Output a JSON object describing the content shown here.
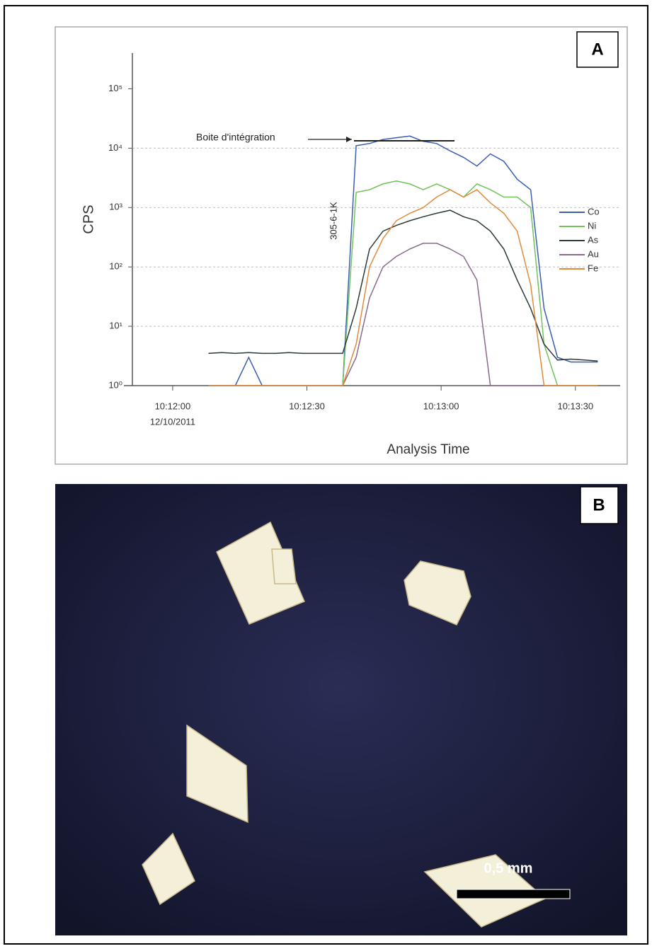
{
  "chart_data": {
    "type": "line",
    "yscale": "log",
    "grid": true,
    "legend": "right",
    "xlabel": "Analysis Time",
    "ylabel": "CPS",
    "x_date": "12/10/2011",
    "annotations": [
      "Boite d'intégration",
      "305-6-1K"
    ],
    "xlim": [
      "10:11:51",
      "10:13:40"
    ],
    "xticks": [
      "10:12:00",
      "10:12:30",
      "10:13:00",
      "10:13:30"
    ],
    "ylim": [
      1,
      400000
    ],
    "yticks": [
      {
        "value": 1,
        "label": "10⁰"
      },
      {
        "value": 10,
        "label": "10¹"
      },
      {
        "value": 100,
        "label": "10²"
      },
      {
        "value": 1000,
        "label": "10³"
      },
      {
        "value": 10000,
        "label": "10⁴"
      },
      {
        "value": 100000,
        "label": "10⁵"
      }
    ],
    "x": [
      "10:12:08",
      "10:12:11",
      "10:12:14",
      "10:12:17",
      "10:12:20",
      "10:12:23",
      "10:12:26",
      "10:12:29",
      "10:12:32",
      "10:12:35",
      "10:12:38",
      "10:12:41",
      "10:12:44",
      "10:12:47",
      "10:12:50",
      "10:12:53",
      "10:12:56",
      "10:12:59",
      "10:13:02",
      "10:13:05",
      "10:13:08",
      "10:13:11",
      "10:13:14",
      "10:13:17",
      "10:13:20",
      "10:13:23",
      "10:13:26",
      "10:13:29",
      "10:13:32",
      "10:13:35"
    ],
    "series": [
      {
        "name": "Co",
        "color": "#3a5fb0",
        "values": [
          1,
          1,
          1,
          3,
          1,
          1,
          1,
          1,
          1,
          1,
          1,
          11000,
          12000,
          14000,
          15000,
          16000,
          13000,
          12000,
          9000,
          7000,
          5000,
          8000,
          6000,
          3000,
          2000,
          20,
          3,
          2.5,
          2.5,
          2.5
        ]
      },
      {
        "name": "Ni",
        "color": "#6fc35a",
        "values": [
          1,
          1,
          1,
          1,
          1,
          1,
          1,
          1,
          1,
          1,
          1,
          1800,
          2000,
          2500,
          2800,
          2500,
          2000,
          2500,
          2000,
          1500,
          2500,
          2000,
          1500,
          1500,
          1000,
          5,
          1,
          1,
          1,
          1
        ]
      },
      {
        "name": "As",
        "color": "#2b3a3a",
        "values": [
          3.5,
          3.6,
          3.5,
          3.6,
          3.5,
          3.5,
          3.6,
          3.5,
          3.5,
          3.5,
          3.5,
          20,
          200,
          400,
          500,
          600,
          700,
          800,
          900,
          700,
          600,
          400,
          200,
          60,
          20,
          5,
          2.7,
          2.8,
          2.7,
          2.6
        ]
      },
      {
        "name": "Au",
        "color": "#8a6a8a",
        "values": [
          1,
          1,
          1,
          1,
          1,
          1,
          1,
          1,
          1,
          1,
          1,
          3,
          30,
          100,
          150,
          200,
          250,
          250,
          200,
          150,
          60,
          1,
          1,
          1,
          1,
          1,
          1,
          1,
          1,
          1
        ]
      },
      {
        "name": "Fe",
        "color": "#e08a3a",
        "values": [
          1,
          1,
          1,
          1,
          1,
          1,
          1,
          1,
          1,
          1,
          1,
          5,
          100,
          300,
          600,
          800,
          1000,
          1500,
          2000,
          1500,
          2000,
          1200,
          800,
          400,
          50,
          1,
          1,
          1,
          1,
          1
        ]
      }
    ]
  },
  "panel_labels": [
    "A",
    "B"
  ],
  "image": {
    "scale_bar_label": "0,5 mm"
  }
}
